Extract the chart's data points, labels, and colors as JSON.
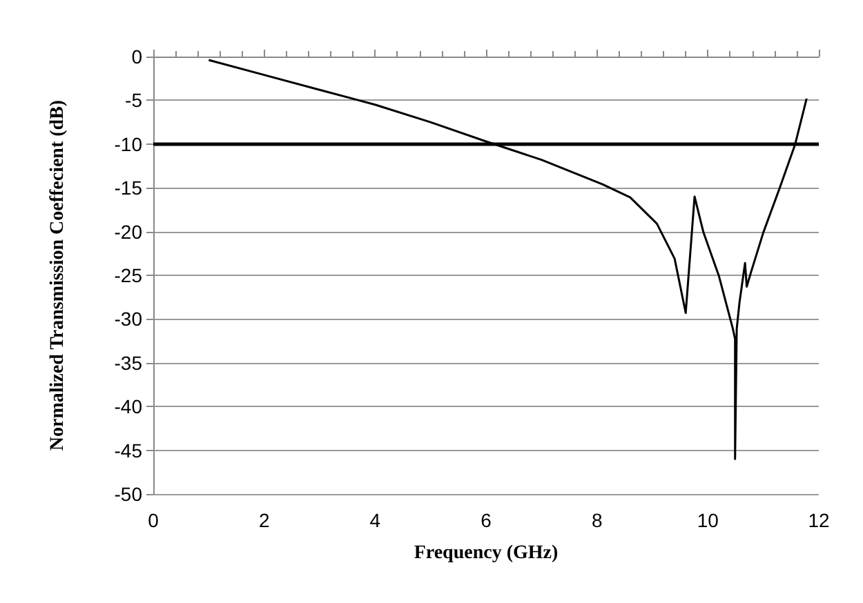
{
  "chart_data": {
    "type": "line",
    "xlabel": "Frequency (GHz)",
    "ylabel": "Normalized Transmission Coeffecient (dB)",
    "series": [
      {
        "color": "#000000",
        "x": [
          1.0,
          2.0,
          3.0,
          4.0,
          5.0,
          6.0,
          7.0,
          8.1,
          8.6,
          9.08,
          9.4,
          9.6,
          9.76,
          9.92,
          10.2,
          10.45,
          10.49,
          10.49,
          10.52,
          10.57,
          10.67,
          10.7,
          10.78,
          11.0,
          11.29,
          11.57,
          11.78
        ],
        "values": [
          -0.4,
          -2.1,
          -3.8,
          -5.5,
          -7.5,
          -9.7,
          -11.8,
          -14.6,
          -16.1,
          -19.1,
          -23.1,
          -29.3,
          -16.0,
          -20.1,
          -25.1,
          -31.1,
          -32.3,
          -46,
          -31.1,
          -28.1,
          -23.6,
          -26.3,
          -24.6,
          -20.1,
          -15.1,
          -10.1,
          -4.8
        ]
      }
    ],
    "xlim": [
      0,
      12
    ],
    "xticks": [
      0,
      2,
      4,
      6,
      8,
      10,
      12
    ],
    "ylim": [
      -50,
      0
    ],
    "yticks": [
      -50,
      -45,
      -40,
      -35,
      -30,
      -25,
      -20,
      -15,
      -10,
      -5,
      0
    ],
    "grid": "y",
    "marker": "none",
    "line_style": "solid",
    "ref_lines": [
      {
        "axis": "y",
        "value": -10,
        "color": "#000000"
      }
    ]
  }
}
